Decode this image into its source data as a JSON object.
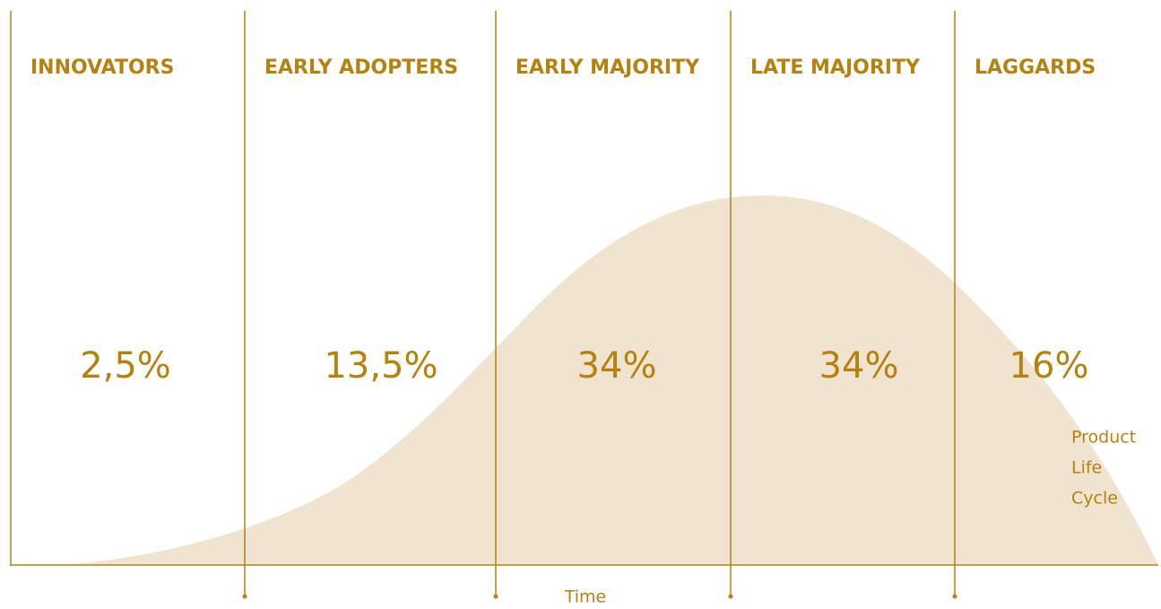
{
  "segments": [
    {
      "label": "INNOVATORS",
      "share": "2,5%"
    },
    {
      "label": "EARLY ADOPTERS",
      "share": "13,5%"
    },
    {
      "label": "EARLY MAJORITY",
      "share": "34%"
    },
    {
      "label": "LATE MAJORITY",
      "share": "34%"
    },
    {
      "label": "LAGGARDS",
      "share": "16%"
    }
  ],
  "axis_label": "Time",
  "curve_label": [
    "Product",
    "Life",
    "Cycle"
  ]
}
